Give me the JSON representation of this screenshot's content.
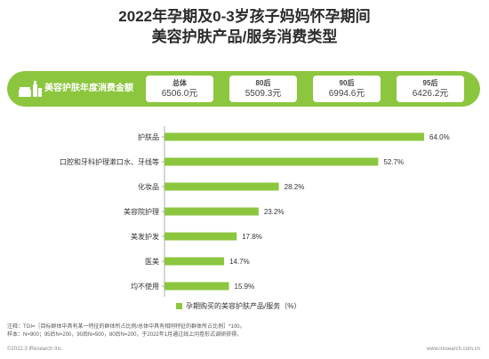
{
  "title_line1": "2022年孕期及0-3岁孩子妈妈怀孕期间",
  "title_line2": "美容护肤产品/服务消费类型",
  "banner": {
    "label": "美容护肤年度消费金额",
    "stats": [
      {
        "label": "总体",
        "value": "6506.0元"
      },
      {
        "label": "80后",
        "value": "5509.3元"
      },
      {
        "label": "90后",
        "value": "6994.6元"
      },
      {
        "label": "95后",
        "value": "6426.2元"
      }
    ]
  },
  "colors": {
    "accent": "#8cc63f",
    "bar": "#8cc63f"
  },
  "chart_data": {
    "type": "bar",
    "orientation": "horizontal",
    "categories": [
      "护肤品",
      "口腔和牙科护理漱口水、牙线等",
      "化妆品",
      "美容院护理",
      "美发护发",
      "医美",
      "均不使用"
    ],
    "values": [
      64.0,
      52.7,
      28.2,
      23.2,
      17.8,
      14.7,
      15.9
    ],
    "value_labels": [
      "64.0%",
      "52.7%",
      "28.2%",
      "23.2%",
      "17.8%",
      "14.7%",
      "15.9%"
    ],
    "series": [
      {
        "name": "孕期购买的美容护肤产品/服务（%）",
        "values": [
          64.0,
          52.7,
          28.2,
          23.2,
          17.8,
          14.7,
          15.9
        ]
      }
    ],
    "xlim": [
      0,
      64.0
    ],
    "grid": false,
    "legend_position": "bottom"
  },
  "legend_label": "孕期购买的美容护肤产品/服务（%）",
  "notes": [
    "注释：TGI=［目标群体中具有某一特征的群体所占比例/总体中具有相同特征的群体所占比例］*100。",
    "样本：N=900；95后N=200，90后N=500，80后N=200，于2022年1月通过线上问卷形式调研获得。"
  ],
  "footer_left": "©2022.3 iResearch Inc.",
  "footer_right": "www.iresearch.com.cn"
}
